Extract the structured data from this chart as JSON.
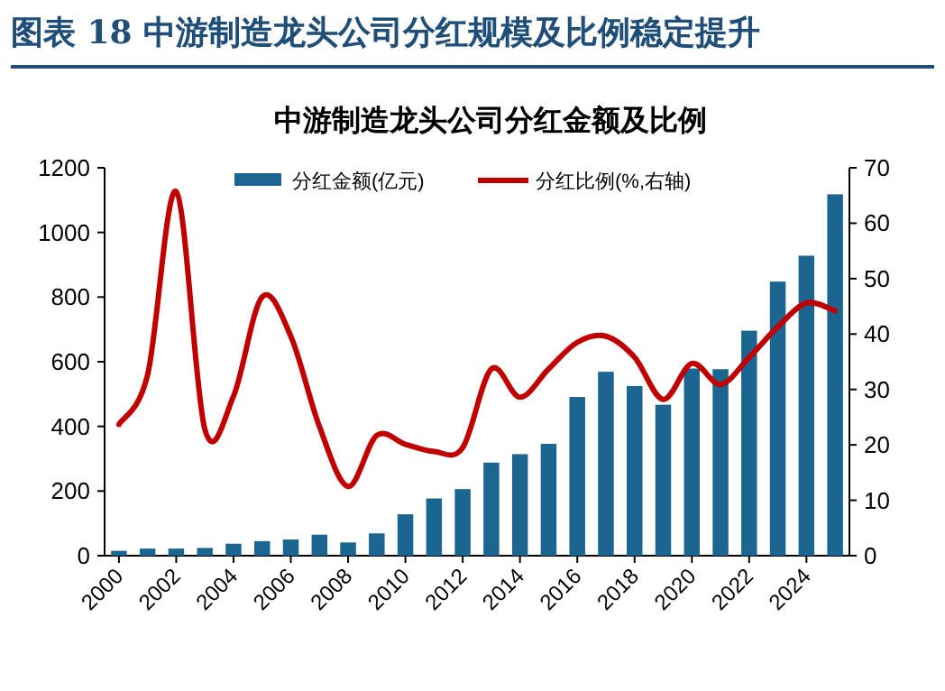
{
  "chart_data": {
    "type": "bar",
    "title": "图表 18 中游制造龙头公司分红规模及比例稳定提升",
    "subtitle": "中游制造龙头公司分红金额及比例",
    "categories": [
      "2000",
      null,
      "2002",
      null,
      "2004",
      null,
      "2006",
      null,
      "2008",
      null,
      "2010",
      null,
      "2012",
      null,
      "2014",
      null,
      "2016",
      null,
      "2018",
      null,
      "2020",
      null,
      "2022",
      null,
      "2024",
      null
    ],
    "series": [
      {
        "name": "分红金额(亿元)",
        "color": "#1b6690",
        "values": [
          15,
          22,
          22,
          24,
          37,
          45,
          50,
          65,
          41,
          69,
          128,
          177,
          206,
          288,
          314,
          346,
          491,
          569,
          525,
          467,
          579,
          577,
          696,
          848,
          928,
          1118
        ]
      },
      {
        "name": "分红比例(%,右轴)",
        "type": "line",
        "axis": "y2",
        "color": "#c00000",
        "values": [
          23.7,
          32.6,
          65.7,
          22.8,
          28.8,
          46.7,
          39.6,
          23.3,
          12.5,
          21.7,
          20.1,
          18.8,
          19.5,
          33.7,
          28.6,
          33.7,
          38.5,
          39.6,
          35.8,
          28.2,
          34.7,
          30.9,
          35.8,
          41.3,
          45.6,
          44.2
        ]
      }
    ],
    "ylim": [
      0,
      1200
    ],
    "yticks": [
      0,
      200,
      400,
      600,
      800,
      1000,
      1200
    ],
    "y2lim": [
      0,
      70
    ],
    "y2ticks": [
      0,
      10,
      20,
      30,
      40,
      50,
      60,
      70
    ],
    "legend": "top",
    "grid": false
  }
}
